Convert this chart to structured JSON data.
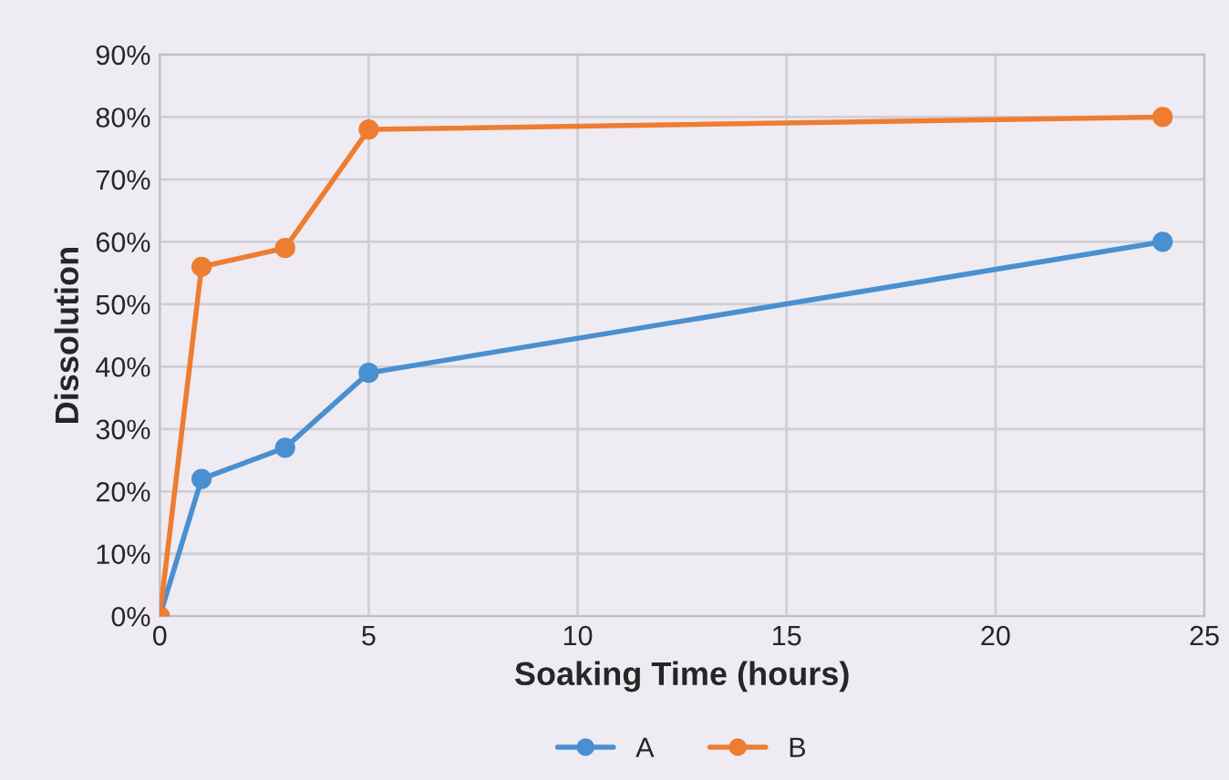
{
  "chart_data": {
    "type": "line",
    "xlabel": "Soaking Time (hours)",
    "ylabel": "Dissolution",
    "x": [
      0,
      1,
      3,
      5,
      24
    ],
    "series": [
      {
        "name": "A",
        "color": "#4a8fd0",
        "values": [
          0,
          22,
          27,
          39,
          60
        ]
      },
      {
        "name": "B",
        "color": "#ed7d31",
        "values": [
          0,
          56,
          59,
          78,
          80
        ]
      }
    ],
    "xlim": [
      0,
      25
    ],
    "xticks": [
      0,
      5,
      10,
      15,
      20,
      25
    ],
    "ylim": [
      0,
      90
    ],
    "yticks": [
      {
        "value": 0,
        "label": "0%"
      },
      {
        "value": 10,
        "label": "10%"
      },
      {
        "value": 20,
        "label": "20%"
      },
      {
        "value": 30,
        "label": "30%"
      },
      {
        "value": 40,
        "label": "40%"
      },
      {
        "value": 50,
        "label": "50%"
      },
      {
        "value": 60,
        "label": "60%"
      },
      {
        "value": 70,
        "label": "70%"
      },
      {
        "value": 80,
        "label": "80%"
      },
      {
        "value": 90,
        "label": "90%"
      }
    ],
    "grid": true,
    "legend": "bottom",
    "marker": "circle",
    "line_style": "solid"
  }
}
